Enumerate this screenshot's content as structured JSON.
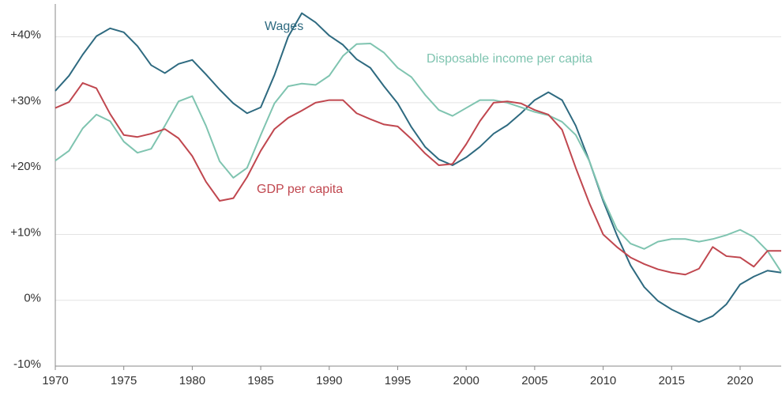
{
  "chart_data": {
    "type": "line",
    "x": [
      1970,
      1971,
      1972,
      1973,
      1974,
      1975,
      1976,
      1977,
      1978,
      1979,
      1980,
      1981,
      1982,
      1983,
      1984,
      1985,
      1986,
      1987,
      1988,
      1989,
      1990,
      1991,
      1992,
      1993,
      1994,
      1995,
      1996,
      1997,
      1998,
      1999,
      2000,
      2001,
      2002,
      2003,
      2004,
      2005,
      2006,
      2007,
      2008,
      2009,
      2010,
      2011,
      2012,
      2013,
      2014,
      2015,
      2016,
      2017,
      2018,
      2019,
      2020,
      2021,
      2022,
      2023
    ],
    "xlim": [
      1970,
      2023
    ],
    "xticks": [
      1970,
      1975,
      1980,
      1985,
      1990,
      1995,
      2000,
      2005,
      2010,
      2015,
      2020
    ],
    "ylim": [
      -10,
      45
    ],
    "yticks": [
      {
        "value": -10,
        "label": "-10%"
      },
      {
        "value": 0,
        "label": "0%"
      },
      {
        "value": 10,
        "label": "+10%"
      },
      {
        "value": 20,
        "label": "+20%"
      },
      {
        "value": 30,
        "label": "+30%"
      },
      {
        "value": 40,
        "label": "+40%"
      }
    ],
    "grid": true,
    "series": [
      {
        "name": "Wages",
        "color": "#2e6a80",
        "values": [
          31.8,
          34.1,
          37.3,
          40.1,
          41.3,
          40.7,
          38.6,
          35.7,
          34.5,
          35.9,
          36.5,
          34.3,
          32.0,
          29.9,
          28.4,
          29.3,
          34.2,
          40.0,
          43.6,
          42.2,
          40.2,
          38.8,
          36.6,
          35.3,
          32.5,
          29.9,
          26.3,
          23.3,
          21.4,
          20.5,
          21.7,
          23.3,
          25.3,
          26.6,
          28.4,
          30.4,
          31.6,
          30.4,
          26.5,
          21.1,
          15.1,
          9.9,
          5.3,
          2.0,
          -0.1,
          -1.4,
          -2.4,
          -3.3,
          -2.4,
          -0.6,
          2.4,
          3.6,
          4.5,
          4.2
        ]
      },
      {
        "name": "Disposable income per capita",
        "color": "#7fc4b0",
        "values": [
          21.2,
          22.7,
          26.1,
          28.2,
          27.2,
          24.1,
          22.4,
          23.0,
          26.5,
          30.2,
          31.0,
          26.5,
          21.1,
          18.6,
          20.1,
          25.1,
          29.9,
          32.5,
          32.9,
          32.7,
          34.1,
          37.1,
          38.9,
          39.0,
          37.6,
          35.3,
          33.9,
          31.2,
          28.9,
          28.0,
          29.2,
          30.4,
          30.4,
          30.0,
          29.3,
          28.6,
          28.1,
          27.1,
          25.1,
          21.1,
          15.4,
          10.8,
          8.6,
          7.8,
          8.9,
          9.3,
          9.3,
          8.9,
          9.3,
          9.9,
          10.7,
          9.6,
          7.5,
          4.3
        ]
      },
      {
        "name": "GDP per capita",
        "color": "#c0474f",
        "values": [
          29.2,
          30.1,
          33.0,
          32.2,
          28.3,
          25.1,
          24.8,
          25.3,
          26.0,
          24.6,
          21.9,
          18.0,
          15.1,
          15.5,
          18.7,
          22.7,
          26.0,
          27.7,
          28.8,
          30.0,
          30.4,
          30.4,
          28.4,
          27.5,
          26.7,
          26.4,
          24.5,
          22.3,
          20.5,
          20.7,
          23.7,
          27.2,
          30.0,
          30.2,
          29.9,
          28.9,
          28.2,
          25.9,
          20.1,
          14.7,
          10.0,
          8.1,
          6.5,
          5.5,
          4.7,
          4.2,
          3.9,
          4.8,
          8.1,
          6.7,
          6.5,
          5.1,
          7.5,
          7.5
        ]
      }
    ]
  }
}
